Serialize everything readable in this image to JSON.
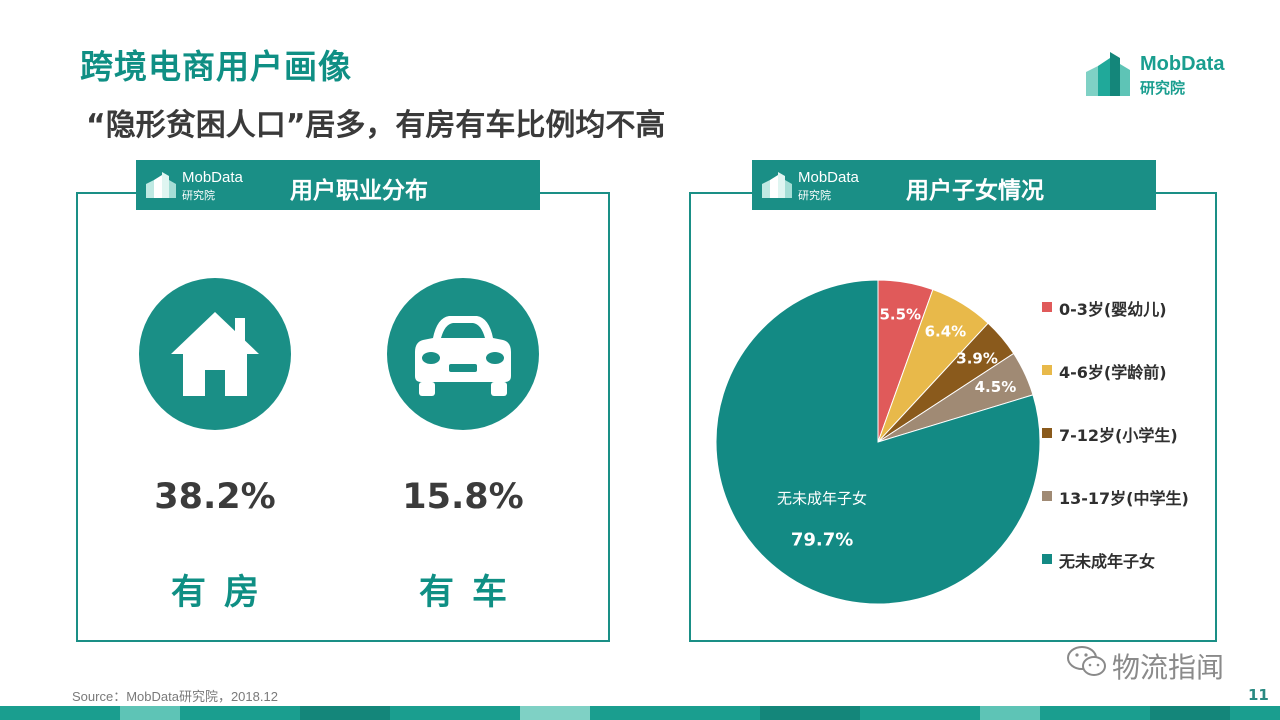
{
  "slide": {
    "title": "跨境电商用户画像",
    "subtitle": "“隐形贫困人口”居多，有房有车比例均不高",
    "page_number": "11",
    "source": "Source：MobData研究院，2018.12",
    "watermark": "物流指闻"
  },
  "logo": {
    "line1": "MobData",
    "line2": "研究院"
  },
  "left_panel": {
    "header_logo_line1": "MobData",
    "header_logo_line2": "研究院",
    "header_title": "用户职业分布",
    "stats": [
      {
        "icon": "house-icon",
        "value": "38.2%",
        "label": "有房"
      },
      {
        "icon": "car-icon",
        "value": "15.8%",
        "label": "有车"
      }
    ]
  },
  "right_panel": {
    "header_logo_line1": "MobData",
    "header_logo_line2": "研究院",
    "header_title": "用户子女情况"
  },
  "colors": {
    "brand": "#1a8f86",
    "title": "#0f8f84",
    "age_0_3": "#e05a5a",
    "age_4_6": "#e8b94a",
    "age_7_12": "#8a5a1c",
    "age_13_17": "#a08a74",
    "no_child": "#138a84"
  },
  "chart_data": {
    "type": "pie",
    "slices": [
      {
        "label": "0-3岁(婴幼儿)",
        "value": 5.5,
        "value_label": "5.5%",
        "color": "#e05a5a"
      },
      {
        "label": "4-6岁(学龄前)",
        "value": 6.4,
        "value_label": "6.4%",
        "color": "#e8b94a"
      },
      {
        "label": "7-12岁(小学生)",
        "value": 3.9,
        "value_label": "3.9%",
        "color": "#8a5a1c"
      },
      {
        "label": "13-17岁(中学生)",
        "value": 4.5,
        "value_label": "4.5%",
        "color": "#a08a74"
      },
      {
        "label": "无未成年子女",
        "value": 79.7,
        "value_label": "79.7%",
        "inner_name": "无未成年子女",
        "color": "#138a84"
      }
    ],
    "legend_position": "right"
  }
}
